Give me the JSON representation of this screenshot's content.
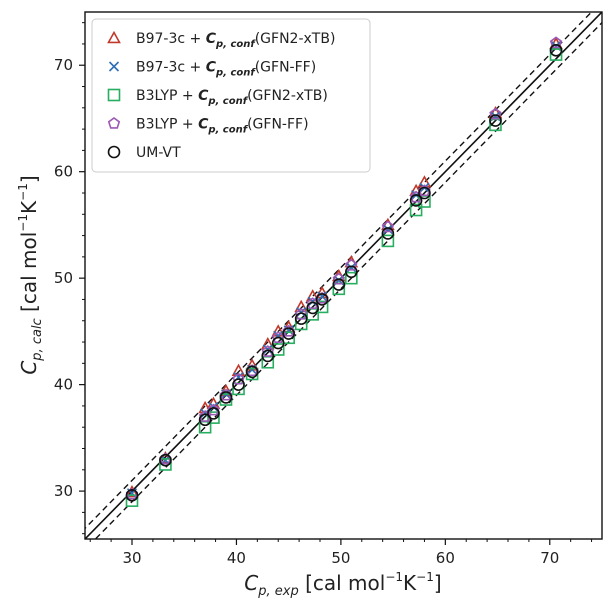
{
  "chart_data": {
    "type": "scatter",
    "xlim": [
      25.5,
      75.0
    ],
    "ylim": [
      25.5,
      75.0
    ],
    "x_ticks": [
      "30",
      "40",
      "50",
      "60",
      "70"
    ],
    "y_ticks": [
      "30",
      "40",
      "50",
      "60",
      "70"
    ],
    "xlabel": {
      "pre": "C",
      "sub": "p, exp",
      "post": " [cal mol",
      "sup1": "−1",
      "mid": "K",
      "sup2": "−1",
      "end": "]"
    },
    "ylabel": {
      "pre": "C",
      "sub": "p, calc",
      "post": " [cal mol",
      "sup1": "−1",
      "mid": "K",
      "sup2": "−1",
      "end": "]"
    },
    "grid": false,
    "legend_position": "top-left",
    "reference_lines": [
      {
        "style": "solid",
        "offset": 0
      },
      {
        "style": "dashed",
        "offset": 1
      },
      {
        "style": "dashed",
        "offset": -1
      }
    ],
    "x": [
      30.0,
      33.2,
      37.0,
      37.8,
      39.0,
      40.2,
      41.5,
      43.0,
      44.0,
      45.0,
      46.2,
      47.3,
      48.2,
      49.8,
      51.0,
      54.5,
      57.2,
      58.0,
      64.8,
      70.6
    ],
    "series": [
      {
        "name": "B97-3c + C_p,conf(GFN2-xTB)",
        "legend_pre": "B97-3c + ",
        "legend_tail": "(GFN2-xTB)",
        "marker": "triangle",
        "color": "#c0392b",
        "values": [
          29.9,
          33.1,
          37.8,
          38.2,
          39.4,
          41.3,
          41.8,
          43.8,
          45.0,
          45.4,
          47.3,
          48.3,
          48.6,
          50.2,
          51.5,
          55.0,
          58.2,
          59.0,
          65.5,
          72.0
        ]
      },
      {
        "name": "B97-3c + C_p,conf(GFN-FF)",
        "legend_pre": "B97-3c + ",
        "legend_tail": "(GFN-FF)",
        "marker": "x",
        "color": "#2e6fb5",
        "values": [
          29.8,
          32.9,
          37.3,
          37.9,
          39.1,
          40.7,
          41.4,
          43.3,
          44.6,
          45.1,
          46.8,
          47.8,
          48.3,
          49.8,
          51.0,
          54.6,
          57.8,
          58.5,
          65.2,
          71.8
        ]
      },
      {
        "name": "B3LYP + C_p,conf(GFN2-xTB)",
        "legend_pre": "B3LYP + ",
        "legend_tail": "(GFN2-xTB)",
        "marker": "square",
        "color": "#27ae60",
        "values": [
          29.1,
          32.5,
          36.0,
          36.9,
          38.6,
          39.6,
          41.0,
          42.1,
          43.3,
          44.4,
          45.7,
          46.6,
          47.3,
          49.0,
          50.0,
          53.5,
          56.4,
          57.2,
          64.4,
          71.0
        ]
      },
      {
        "name": "B3LYP + C_p,conf(GFN-FF)",
        "legend_pre": "B3LYP + ",
        "legend_tail": "(GFN-FF)",
        "marker": "pentagon",
        "color": "#9b59b6",
        "values": [
          29.7,
          33.0,
          37.0,
          37.6,
          39.0,
          40.5,
          41.3,
          43.1,
          44.4,
          45.0,
          46.6,
          47.6,
          48.1,
          49.9,
          51.2,
          54.8,
          57.6,
          58.2,
          65.4,
          72.1
        ]
      },
      {
        "name": "UM-VT",
        "legend_pre": "UM-VT",
        "legend_tail": "",
        "marker": "circle",
        "color": "#111111",
        "values": [
          29.6,
          32.9,
          36.7,
          37.3,
          38.8,
          40.0,
          41.2,
          42.7,
          43.9,
          44.8,
          46.2,
          47.2,
          48.0,
          49.4,
          50.6,
          54.2,
          57.3,
          58.0,
          64.8,
          71.4
        ]
      }
    ]
  }
}
